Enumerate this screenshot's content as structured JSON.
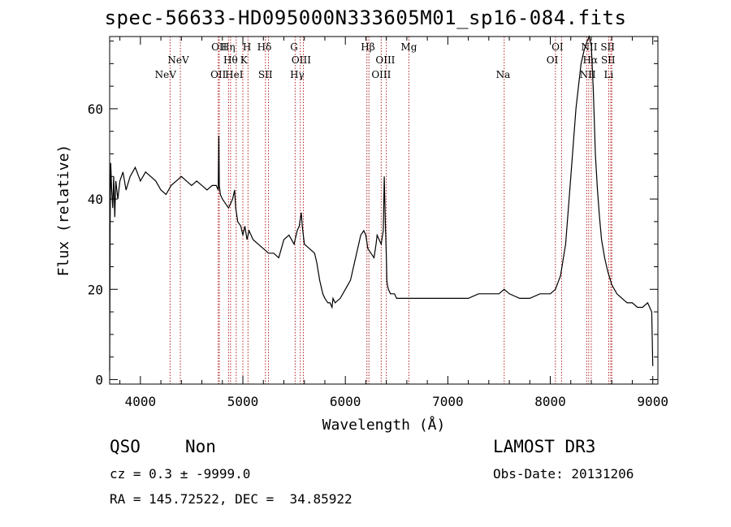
{
  "title": "spec-56633-HD095000N333605M01_sp16-084.fits",
  "info": {
    "class": "QSO",
    "subclass": "Non",
    "survey": "LAMOST DR3",
    "cz": "cz = 0.3 ± -9999.0",
    "obs_date": "Obs-Date: 20131206",
    "ra_dec": "RA = 145.72522, DEC =  34.85922"
  },
  "colors": {
    "line": "#000000",
    "marker": "#b22222",
    "axes": "#000000"
  },
  "chart_data": {
    "type": "line",
    "xlabel": "Wavelength (Å)",
    "ylabel": "Flux (relative)",
    "xlim": [
      3700,
      9050
    ],
    "ylim": [
      -1,
      76
    ],
    "xticks": [
      4000,
      5000,
      6000,
      7000,
      8000,
      9000
    ],
    "yticks": [
      0,
      20,
      40,
      60
    ],
    "series": [
      {
        "x": [
          3700,
          3705,
          3710,
          3720,
          3730,
          3740,
          3750,
          3760,
          3780,
          3800,
          3830,
          3860,
          3900,
          3950,
          4000,
          4050,
          4100,
          4150,
          4200,
          4250,
          4300,
          4350,
          4400,
          4450,
          4500,
          4550,
          4600,
          4650,
          4700,
          4740,
          4760,
          4765,
          4770,
          4780,
          4800,
          4830,
          4860,
          4900,
          4920,
          4930,
          4950,
          4980,
          5000,
          5020,
          5040,
          5060,
          5100,
          5150,
          5200,
          5250,
          5300,
          5350,
          5400,
          5450,
          5500,
          5530,
          5550,
          5570,
          5580,
          5600,
          5650,
          5700,
          5720,
          5750,
          5780,
          5800,
          5830,
          5850,
          5870,
          5880,
          5900,
          5950,
          6000,
          6050,
          6100,
          6130,
          6150,
          6180,
          6200,
          6220,
          6250,
          6280,
          6300,
          6310,
          6330,
          6350,
          6370,
          6380,
          6390,
          6400,
          6405,
          6410,
          6420,
          6440,
          6460,
          6480,
          6500,
          6550,
          6600,
          6700,
          6800,
          6900,
          7000,
          7100,
          7200,
          7300,
          7400,
          7500,
          7550,
          7600,
          7700,
          7800,
          7900,
          8000,
          8050,
          8100,
          8150,
          8200,
          8250,
          8300,
          8330,
          8360,
          8380,
          8400,
          8420,
          8440,
          8460,
          8480,
          8500,
          8530,
          8560,
          8600,
          8650,
          8700,
          8750,
          8800,
          8850,
          8900,
          8950,
          8990,
          9000
        ],
        "y": [
          2,
          35,
          48,
          42,
          38,
          45,
          36,
          44,
          40,
          44,
          46,
          42,
          45,
          47,
          44,
          46,
          45,
          44,
          42,
          41,
          43,
          44,
          45,
          44,
          43,
          44,
          43,
          42,
          43,
          43,
          42,
          54,
          43,
          41,
          40,
          39,
          38,
          40,
          42,
          38,
          35,
          34,
          32,
          34,
          31,
          33,
          31,
          30,
          29,
          28,
          28,
          27,
          31,
          32,
          30,
          33,
          34,
          37,
          34,
          30,
          29,
          28,
          26,
          22,
          19,
          18,
          17,
          17,
          16,
          18,
          17,
          18,
          20,
          22,
          27,
          30,
          32,
          33,
          32,
          29,
          28,
          27,
          30,
          32,
          31,
          30,
          33,
          45,
          35,
          27,
          22,
          21,
          20,
          19,
          19,
          19,
          18,
          18,
          18,
          18,
          18,
          18,
          18,
          18,
          18,
          19,
          19,
          19,
          20,
          19,
          18,
          18,
          19,
          19,
          20,
          23,
          30,
          45,
          60,
          70,
          73,
          75,
          76,
          74,
          64,
          50,
          42,
          36,
          31,
          27,
          24,
          21,
          19,
          18,
          17,
          17,
          16,
          16,
          17,
          15,
          3
        ]
      }
    ],
    "markers_top": [
      {
        "x": 4768,
        "label": "OII"
      },
      {
        "x": 4855,
        "label": "Hη"
      },
      {
        "x": 5040,
        "label": "H"
      },
      {
        "x": 5210,
        "label": "Hδ"
      },
      {
        "x": 5500,
        "label": "G"
      },
      {
        "x": 6220,
        "label": "Hβ"
      },
      {
        "x": 6620,
        "label": "Mg"
      },
      {
        "x": 8070,
        "label": "OI"
      },
      {
        "x": 8380,
        "label": "NII"
      },
      {
        "x": 8560,
        "label": "SII"
      }
    ],
    "markers_mid": [
      {
        "x": 4370,
        "label": "NeV"
      },
      {
        "x": 4880,
        "label": "Hθ"
      },
      {
        "x": 5010,
        "label": "K"
      },
      {
        "x": 5570,
        "label": "OIII"
      },
      {
        "x": 6390,
        "label": "OIII"
      },
      {
        "x": 8020,
        "label": "OI"
      },
      {
        "x": 8390,
        "label": "Hα"
      },
      {
        "x": 8565,
        "label": "SII"
      }
    ],
    "markers_low": [
      {
        "x": 4245,
        "label": "NeV"
      },
      {
        "x": 4760,
        "label": "OII"
      },
      {
        "x": 4915,
        "label": "HeI"
      },
      {
        "x": 5220,
        "label": "SII"
      },
      {
        "x": 5530,
        "label": "Hγ"
      },
      {
        "x": 6350,
        "label": "OIII"
      },
      {
        "x": 7540,
        "label": "Na"
      },
      {
        "x": 8365,
        "label": "NII"
      },
      {
        "x": 8570,
        "label": "Li"
      }
    ],
    "marker_lines": [
      4290,
      4390,
      4760,
      4770,
      4860,
      4880,
      4935,
      5000,
      5050,
      5220,
      5250,
      5510,
      5560,
      5590,
      6210,
      6230,
      6350,
      6400,
      6620,
      7550,
      8050,
      8110,
      8355,
      8375,
      8400,
      8570,
      8590,
      8600
    ]
  }
}
